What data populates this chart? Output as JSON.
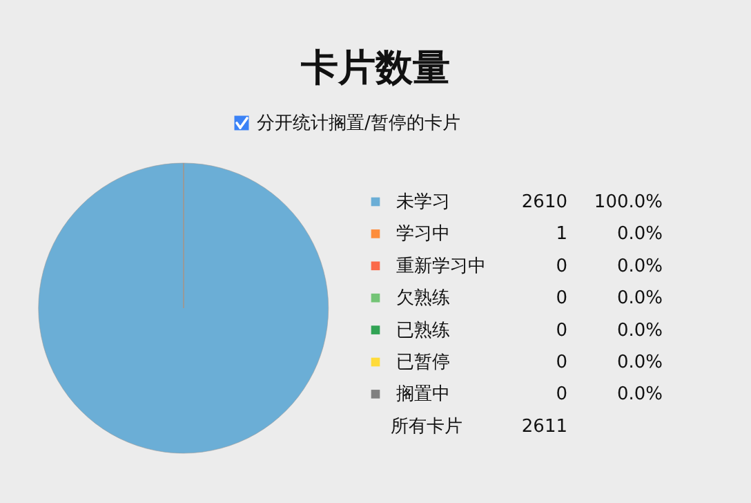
{
  "chart_data": {
    "type": "pie",
    "title": "卡片数量",
    "annotations": [
      "分开统计搁置/暂停的卡片",
      "所有卡片",
      "100.0%",
      "0.0%",
      "0.0%",
      "0.0%",
      "0.0%",
      "0.0%",
      "0.0%"
    ],
    "categories": [
      "未学习",
      "学习中",
      "重新学习中",
      "欠熟练",
      "已熟练",
      "已暂停",
      "搁置中"
    ],
    "values": [
      2610,
      1,
      0,
      0,
      0,
      0,
      0
    ],
    "colors": [
      "#6baed6",
      "#fd8d3c",
      "#fb6a4a",
      "#74c476",
      "#31a354",
      "#ffdb3a",
      "#808080"
    ],
    "value_labels": [
      "2610",
      "1",
      "0",
      "0",
      "0",
      "0",
      "0"
    ],
    "totals": [
      "2611"
    ],
    "legend": "right"
  }
}
